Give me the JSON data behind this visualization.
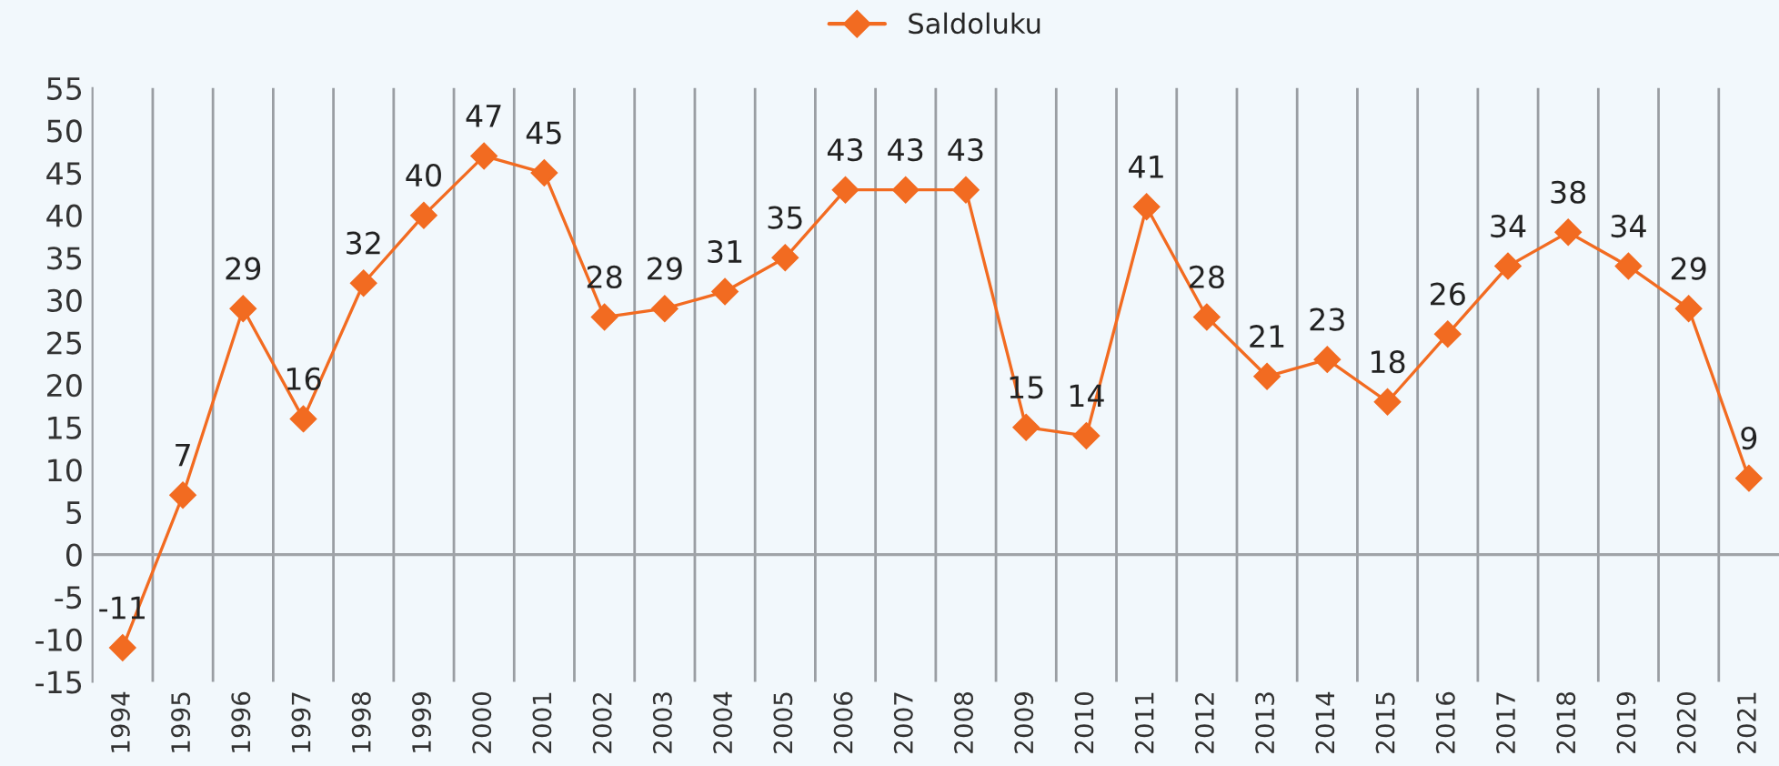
{
  "chart_data": {
    "type": "line",
    "categories": [
      "1994",
      "1995",
      "1996",
      "1997",
      "1998",
      "1999",
      "2000",
      "2001",
      "2002",
      "2003",
      "2004",
      "2005",
      "2006",
      "2007",
      "2008",
      "2009",
      "2010",
      "2011",
      "2012",
      "2013",
      "2014",
      "2015",
      "2016",
      "2017",
      "2018",
      "2019",
      "2020",
      "2021"
    ],
    "series": [
      {
        "name": "Saldoluku",
        "color": "#f26b21",
        "values": [
          -11,
          7,
          29,
          16,
          32,
          40,
          47,
          45,
          28,
          29,
          31,
          35,
          43,
          43,
          43,
          15,
          14,
          41,
          28,
          21,
          23,
          18,
          26,
          34,
          38,
          34,
          29,
          9
        ]
      }
    ],
    "ylim": [
      -15,
      55
    ],
    "yticks": [
      -15,
      -10,
      -5,
      0,
      5,
      10,
      15,
      20,
      25,
      30,
      35,
      40,
      45,
      50,
      55
    ],
    "ref_lines": [
      {
        "axis": "y",
        "value": 0,
        "color": "#a0a4a8"
      }
    ],
    "grid": "x",
    "legend": "top",
    "marker": "diamond",
    "line_style": "solid",
    "data_labels": true
  }
}
